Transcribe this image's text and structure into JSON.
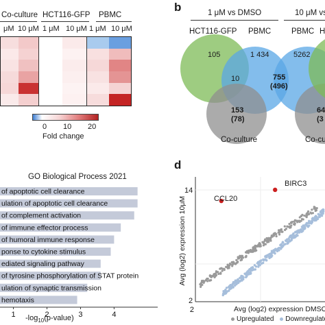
{
  "panel_a": {
    "col_groups": [
      "Co-culture",
      "HCT116-GFP",
      "PBMC"
    ],
    "col_labels": [
      "μM",
      "10 μM",
      "1 μM",
      "10 μM",
      "1 μM",
      "10 μM"
    ],
    "heatmap": {
      "colors": [
        [
          "#f7dede",
          "#f3c9c9",
          "#ffffff",
          "#fbeaea",
          "#a9cbee",
          "#6a9fe0"
        ],
        [
          "#fbe9e9",
          "#f5d2d2",
          "#ffffff",
          "#fdf2f2",
          "#f8e0e0",
          "#f0bcbc"
        ],
        [
          "#f9e3e3",
          "#f0c1c1",
          "#ffffff",
          "#fbecec",
          "#f6d8d8",
          "#e18585"
        ],
        [
          "#f6dada",
          "#e9a3a3",
          "#ffffff",
          "#fcefef",
          "#f8e2e2",
          "#e49494"
        ],
        [
          "#f6d7d7",
          "#c93232",
          "#ffffff",
          "#fdf3f3",
          "#fbeaea",
          "#f5d4d4"
        ],
        [
          "#faeaea",
          "#f4cfcf",
          "#ffffff",
          "#fdf1f1",
          "#f7dcdc",
          "#c42424"
        ]
      ]
    },
    "colorbar": {
      "ticks": [
        "0",
        "10",
        "20"
      ],
      "label": "Fold change",
      "low_color": "#3f7fd4",
      "high_color": "#b22222"
    }
  },
  "panel_b": {
    "letter": "b",
    "comparisons": [
      "1 μM vs DMSO",
      "10 μM vs"
    ],
    "set_labels": [
      "HCT116-GFP",
      "PBMC",
      "PBMC",
      "H"
    ],
    "counts": {
      "hct_only": "105",
      "pbmc_only": "1 434",
      "hct_pbmc": "10",
      "pbmc_co_main": "755",
      "pbmc_co_paren": "(496)",
      "co_only_main": "153",
      "co_only_paren": "(78)",
      "pbmc_right": "5262",
      "co_right": "64",
      "co_right_paren": "(3"
    },
    "co_culture_labels": [
      "Co-culture",
      "Co-cu"
    ],
    "colors": {
      "green": "#7dbb57",
      "blue": "#5aa7e6",
      "gray": "#8f8f8f"
    }
  },
  "panel_c": {
    "title": "GO Biological Process 2021",
    "xlabel": "-log",
    "xlabel_sub": "10",
    "xlabel_tail": "(p-value)",
    "bar_color": "#c4cad9"
  },
  "panel_d": {
    "letter": "d",
    "ylabel": "Avg (log2) expression 10μM",
    "xlabel": "Avg (log2) expression DMSO",
    "y_tick_top": "14",
    "x_tick_left": "2",
    "y_tick_bottom": "2",
    "highlight_labels": [
      "CCL20",
      "BIRC3"
    ],
    "highlight_color": "#cc1f1f",
    "legend": [
      "Upregulated",
      "Downregulate"
    ],
    "colors": {
      "up": "#9a9a9a",
      "down": "#a6bedb"
    }
  },
  "chart_data": [
    {
      "type": "bar",
      "title": "GO Biological Process 2021",
      "orientation": "horizontal",
      "xlabel": "-log10(p-value)",
      "categories": [
        "of apoptotic cell clearance",
        "ulation of apoptotic cell clearance",
        "of complement activation",
        "of immune effector process",
        "of humoral immune response",
        "ponse to cytokine stimulus",
        "ediated signaling pathway",
        "of tyrosine phosphorylation of STAT protein",
        "ulation of synaptic transmission",
        "hemotaxis"
      ],
      "values": [
        4.7,
        4.7,
        4.6,
        4.2,
        4.0,
        3.9,
        3.6,
        3.6,
        3.2,
        2.9
      ],
      "x_ticks": [
        "1",
        "2",
        "3",
        "4"
      ],
      "xlim": [
        0.6,
        5.3
      ]
    },
    {
      "type": "scatter",
      "xlabel": "Avg (log2) expression DMSO",
      "ylabel": "Avg (log2) expression 10μM",
      "xlim": [
        2,
        15.5
      ],
      "ylim": [
        2,
        15.5
      ],
      "highlighted": [
        {
          "name": "CCL20",
          "x": 4.7,
          "y": 12.9
        },
        {
          "name": "BIRC3",
          "x": 10.3,
          "y": 14.1
        }
      ]
    }
  ]
}
